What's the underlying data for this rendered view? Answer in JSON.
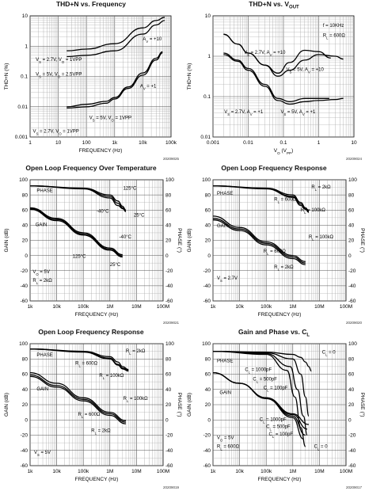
{
  "charts": [
    {
      "id": "thd-freq",
      "title": "THD+N vs. Frequency",
      "figure_id": "20209025",
      "chart_data": {
        "type": "line",
        "xlabel": "FREQUENCY (Hz)",
        "ylabel": "THD+N (%)",
        "x_scale": "log",
        "y_scale": "log",
        "xlim": [
          1,
          100000
        ],
        "ylim": [
          0.001,
          10
        ],
        "x_ticks": [
          "1",
          "10",
          "100",
          "1k",
          "10k",
          "100k"
        ],
        "y_ticks": [
          "0.001",
          "0.01",
          "0.1",
          "1",
          "10"
        ],
        "series": [
          {
            "name": "VS = 2.7V, VO = 1VPP, AV = +10",
            "x": [
              20,
              100,
              1000,
              10000,
              30000,
              60000
            ],
            "y": [
              0.7,
              0.8,
              1.2,
              4,
              7,
              9
            ]
          },
          {
            "name": "VS = 5V, VO = 2.5VPP, AV = +10",
            "x": [
              20,
              100,
              1000,
              10000,
              30000,
              60000
            ],
            "y": [
              0.45,
              0.5,
              0.7,
              2.5,
              5,
              7
            ]
          },
          {
            "name": "VS = 5V, VO = 1VPP, AV = +1",
            "x": [
              20,
              100,
              500,
              1000,
              3000,
              10000,
              30000,
              50000
            ],
            "y": [
              0.01,
              0.012,
              0.015,
              0.02,
              0.045,
              0.13,
              0.4,
              0.65
            ]
          },
          {
            "name": "VS = 2.7V, VO = 1VPP, AV = +1",
            "x": [
              20,
              100,
              500,
              1000,
              3000,
              10000,
              30000,
              50000
            ],
            "y": [
              0.009,
              0.01,
              0.013,
              0.018,
              0.04,
              0.11,
              0.35,
              0.6
            ]
          }
        ],
        "annotations": [
          "AV = +10",
          "VS = 2.7V, VO = 1VPP",
          "VS = 5V, VO = 2.5VPP",
          "AV = +1",
          "VS = 5V, VO = 1VPP",
          "VS = 2.7V, VO = 1VPP"
        ]
      }
    },
    {
      "id": "thd-vout",
      "title": "THD+N vs. VOUT",
      "figure_id": "20209024",
      "chart_data": {
        "type": "line",
        "xlabel": "VO (VPP)",
        "ylabel": "THD+N (%)",
        "x_scale": "log",
        "y_scale": "log",
        "xlim": [
          0.001,
          10
        ],
        "ylim": [
          0.01,
          10
        ],
        "x_ticks": [
          "0.001",
          "0.01",
          "0.1",
          "1",
          "10"
        ],
        "y_ticks": [
          "0.01",
          "0.1",
          "1",
          "10"
        ],
        "series": [
          {
            "name": "VS = 2.7V, AV = +10",
            "x": [
              0.002,
              0.005,
              0.01,
              0.03,
              0.07,
              0.15,
              0.4,
              1,
              2.2
            ],
            "y": [
              3.5,
              2,
              1.2,
              0.6,
              0.38,
              0.7,
              1.4,
              1.3,
              0.9
            ]
          },
          {
            "name": "VS = 5V, AV = +10",
            "x": [
              0.002,
              0.005,
              0.01,
              0.03,
              0.07,
              0.15,
              0.4,
              1,
              3,
              5
            ],
            "y": [
              3.5,
              2,
              1.2,
              0.6,
              0.32,
              0.45,
              0.8,
              1.1,
              1.0,
              0.85
            ]
          },
          {
            "name": "VS = 2.7V, AV = +1",
            "x": [
              0.002,
              0.005,
              0.01,
              0.03,
              0.07,
              0.15,
              0.4,
              1,
              2
            ],
            "y": [
              1.2,
              0.8,
              0.5,
              0.2,
              0.09,
              0.075,
              0.09,
              0.09,
              0.09
            ]
          },
          {
            "name": "VS = 5V, AV = +1",
            "x": [
              0.002,
              0.005,
              0.01,
              0.03,
              0.07,
              0.15,
              0.4,
              1,
              3,
              5
            ],
            "y": [
              1.1,
              0.75,
              0.45,
              0.18,
              0.08,
              0.065,
              0.075,
              0.08,
              0.085,
              0.09
            ]
          }
        ],
        "annotations": [
          "f = 10KHz",
          "RL = 600Ω",
          "VS = 2.7V, AV = +10",
          "VS = 5V, AV = +10",
          "VS = 2.7V, AV = +1",
          "VS = 5V, AV = +1"
        ]
      }
    },
    {
      "id": "olfr-temp",
      "title": "Open Loop Frequency Over Temperature",
      "figure_id": "20209021",
      "chart_data": {
        "type": "line",
        "xlabel": "FREQUENCY (Hz)",
        "ylabel": "GAIN (dB)",
        "y2label": "PHASE (°)",
        "x_scale": "log",
        "xlim": [
          1000,
          100000000
        ],
        "ylim": [
          -60,
          100
        ],
        "x_ticks": [
          "1k",
          "10k",
          "100k",
          "1M",
          "10M",
          "100M"
        ],
        "y_ticks": [
          "-60",
          "-40",
          "-20",
          "0",
          "20",
          "40",
          "60",
          "80",
          "100"
        ],
        "y2_ticks": [
          "-60",
          "-40",
          "-20",
          "0",
          "20",
          "40",
          "60",
          "80",
          "100"
        ],
        "series": [
          {
            "name": "Phase 125°C",
            "axis": "right",
            "x": [
              1000,
              100000,
              1000000,
              2000000,
              3000000,
              4000000
            ],
            "y": [
              92,
              89,
              80,
              72,
              65,
              60
            ]
          },
          {
            "name": "Phase -40°C",
            "axis": "right",
            "x": [
              1000,
              100000,
              1000000,
              2000000,
              3000000,
              4000000
            ],
            "y": [
              92,
              88,
              76,
              66,
              62,
              58
            ]
          },
          {
            "name": "Phase 25°C",
            "axis": "right",
            "x": [
              1000,
              100000,
              1000000,
              2000000,
              3000000,
              4000000
            ],
            "y": [
              92,
              88.5,
              78,
              69,
              63,
              59
            ]
          },
          {
            "name": "Gain 125°C",
            "x": [
              1000,
              10000,
              100000,
              1000000,
              3000000
            ],
            "y": [
              61,
              46,
              27,
              7,
              -2
            ]
          },
          {
            "name": "Gain -40°C",
            "x": [
              1000,
              10000,
              100000,
              1000000,
              3000000
            ],
            "y": [
              63,
              49,
              30,
              10,
              1
            ]
          },
          {
            "name": "Gain 25°C",
            "x": [
              1000,
              10000,
              100000,
              1000000,
              3000000
            ],
            "y": [
              62,
              47.5,
              28.5,
              8.5,
              -0.5
            ]
          }
        ],
        "annotations": [
          "PHASE",
          "GAIN",
          "125°C",
          "-40°C",
          "25°C",
          "-40°C",
          "125°C",
          "25°C",
          "VO = 5V",
          "RL = 2kΩ"
        ]
      }
    },
    {
      "id": "olfr-a",
      "title": "Open Loop Frequency Response",
      "figure_id": "20209020",
      "chart_data": {
        "type": "line",
        "xlabel": "FREQUENCY (Hz)",
        "ylabel": "GAIN (dB)",
        "y2label": "PHASE (°)",
        "x_scale": "log",
        "xlim": [
          1000,
          100000000
        ],
        "ylim": [
          -60,
          100
        ],
        "x_ticks": [
          "1k",
          "10k",
          "100k",
          "1M",
          "10M",
          "100M"
        ],
        "y_ticks": [
          "-60",
          "-40",
          "-20",
          "0",
          "20",
          "40",
          "60",
          "80",
          "100"
        ],
        "y2_ticks": [
          "-60",
          "-40",
          "-20",
          "0",
          "20",
          "40",
          "60",
          "80",
          "100"
        ],
        "series": [
          {
            "name": "Phase RL = 2kΩ",
            "axis": "right",
            "x": [
              1000,
              100000,
              1000000,
              2000000,
              3000000,
              4000000
            ],
            "y": [
              92,
              89,
              80,
              70,
              63,
              59
            ]
          },
          {
            "name": "Phase RL = 600Ω",
            "axis": "right",
            "x": [
              1000,
              100000,
              1000000,
              2000000,
              3000000,
              4000000
            ],
            "y": [
              92,
              88.5,
              78,
              68,
              62,
              58
            ]
          },
          {
            "name": "Phase RL = 100kΩ",
            "axis": "right",
            "x": [
              1000,
              100000,
              1000000,
              2000000,
              3000000,
              4000000
            ],
            "y": [
              92,
              88,
              77,
              66,
              61,
              57
            ]
          },
          {
            "name": "Gain RL = 100kΩ",
            "x": [
              1000,
              10000,
              100000,
              1000000,
              3000000
            ],
            "y": [
              52,
              37,
              18,
              0,
              -8
            ]
          },
          {
            "name": "Gain RL = 600Ω",
            "x": [
              1000,
              10000,
              100000,
              1000000,
              3000000
            ],
            "y": [
              49,
              35,
              16,
              -2,
              -10
            ]
          },
          {
            "name": "Gain RL = 2kΩ",
            "x": [
              1000,
              10000,
              100000,
              1000000,
              3000000
            ],
            "y": [
              47,
              33,
              14,
              -4,
              -12
            ]
          }
        ],
        "annotations": [
          "PHASE",
          "RL = 2kΩ",
          "RL = 600Ω",
          "RL = 100kΩ",
          "GAIN",
          "RL = 100kΩ",
          "RL = 600Ω",
          "RL = 2kΩ",
          "VS = 2.7V"
        ]
      }
    },
    {
      "id": "olfr-b",
      "title": "Open Loop Frequency Response",
      "figure_id": "20209019",
      "chart_data": {
        "type": "line",
        "xlabel": "FREQUENCY (Hz)",
        "ylabel": "GAIN (dB)",
        "y2label": "PHASE (°)",
        "x_scale": "log",
        "xlim": [
          1000,
          100000000
        ],
        "ylim": [
          -60,
          100
        ],
        "x_ticks": [
          "1k",
          "10k",
          "100k",
          "1M",
          "10M",
          "100M"
        ],
        "y_ticks": [
          "-60",
          "-40",
          "-20",
          "0",
          "20",
          "40",
          "60",
          "80",
          "100"
        ],
        "y2_ticks": [
          "-60",
          "-40",
          "-20",
          "0",
          "20",
          "40",
          "60",
          "80",
          "100"
        ],
        "series": [
          {
            "name": "Phase RL = 2kΩ",
            "axis": "right",
            "x": [
              1000,
              100000,
              1000000,
              2000000,
              3000000,
              5000000
            ],
            "y": [
              93,
              90,
              83,
              76,
              70,
              66
            ]
          },
          {
            "name": "Phase RL = 600Ω",
            "axis": "right",
            "x": [
              1000,
              100000,
              1000000,
              2000000,
              3000000,
              5000000
            ],
            "y": [
              93,
              89.5,
              81,
              73,
              68,
              65
            ]
          },
          {
            "name": "Phase RL = 100kΩ",
            "axis": "right",
            "x": [
              1000,
              100000,
              1000000,
              2000000,
              3000000,
              5000000
            ],
            "y": [
              93,
              89,
              80,
              72,
              67,
              64
            ]
          },
          {
            "name": "Gain RL = 100kΩ",
            "x": [
              1000,
              10000,
              100000,
              1000000,
              4000000
            ],
            "y": [
              62,
              48,
              29,
              10,
              -1
            ]
          },
          {
            "name": "Gain RL = 600Ω",
            "x": [
              1000,
              10000,
              100000,
              1000000,
              4000000
            ],
            "y": [
              59,
              45,
              27,
              8,
              -3
            ]
          },
          {
            "name": "Gain RL = 2kΩ",
            "x": [
              1000,
              10000,
              100000,
              1000000,
              4000000
            ],
            "y": [
              57,
              43,
              25,
              6,
              -5
            ]
          }
        ],
        "annotations": [
          "PHASE",
          "RL = 2kΩ",
          "RL = 600Ω",
          "RL = 100kΩ",
          "GAIN",
          "RL = 100kΩ",
          "RL = 600Ω",
          "RL = 2kΩ",
          "VS = 5V"
        ]
      }
    },
    {
      "id": "gain-phase-cl",
      "title": "Gain and Phase vs. CL",
      "figure_id": "20209017",
      "chart_data": {
        "type": "line",
        "xlabel": "FREQUENCY (Hz)",
        "ylabel": "GAIN (dB)",
        "y2label": "PHASE (°)",
        "x_scale": "log",
        "xlim": [
          1000,
          100000000
        ],
        "ylim": [
          -60,
          100
        ],
        "x_ticks": [
          "1k",
          "10k",
          "100k",
          "1M",
          "10M",
          "100M"
        ],
        "y_ticks": [
          "-60",
          "-40",
          "-20",
          "0",
          "20",
          "40",
          "60",
          "80",
          "100"
        ],
        "y2_ticks": [
          "-60",
          "-40",
          "-20",
          "0",
          "20",
          "40",
          "60",
          "80",
          "100"
        ],
        "series": [
          {
            "name": "Phase CL = 0",
            "axis": "right",
            "x": [
              1000,
              100000,
              1000000,
              2000000,
              3000000,
              4000000,
              5000000
            ],
            "y": [
              90,
              89,
              86,
              82,
              76,
              70,
              64
            ]
          },
          {
            "name": "Phase CL = 100pF",
            "axis": "right",
            "x": [
              1000,
              100000,
              1000000,
              2000000,
              3000000,
              4000000
            ],
            "y": [
              90,
              88,
              80,
              60,
              30,
              5
            ]
          },
          {
            "name": "Phase CL = 500pF",
            "axis": "right",
            "x": [
              1000,
              100000,
              800000,
              1500000,
              2500000,
              3500000
            ],
            "y": [
              90,
              87,
              70,
              40,
              5,
              -20
            ]
          },
          {
            "name": "Phase CL = 1000pF",
            "axis": "right",
            "x": [
              1000,
              100000,
              600000,
              1200000,
              2000000,
              3000000
            ],
            "y": [
              90,
              86,
              65,
              30,
              -10,
              -35
            ]
          },
          {
            "name": "Gain CL = 0",
            "x": [
              1000,
              10000,
              100000,
              1000000,
              4000000
            ],
            "y": [
              62,
              48,
              29,
              8,
              -6
            ]
          },
          {
            "name": "Gain CL = 100pF",
            "x": [
              1000,
              10000,
              100000,
              1000000,
              3500000
            ],
            "y": [
              62,
              48,
              29,
              7,
              -12
            ]
          },
          {
            "name": "Gain CL = 500pF",
            "x": [
              1000,
              10000,
              100000,
              1000000,
              3000000
            ],
            "y": [
              62,
              48,
              28.5,
              5,
              -20
            ]
          },
          {
            "name": "Gain CL = 1000pF",
            "x": [
              1000,
              10000,
              100000,
              1000000,
              2500000
            ],
            "y": [
              62,
              48,
              28,
              3,
              -25
            ]
          }
        ],
        "annotations": [
          "CL = 0",
          "PHASE",
          "CL = 1000pF",
          "CL = 500pF",
          "CL = 100pF",
          "GAIN",
          "CL = 1000pF",
          "CL = 500pF",
          "CL = 100pF",
          "CL = 0",
          "VO = 5V",
          "RL = 600Ω"
        ]
      }
    }
  ]
}
